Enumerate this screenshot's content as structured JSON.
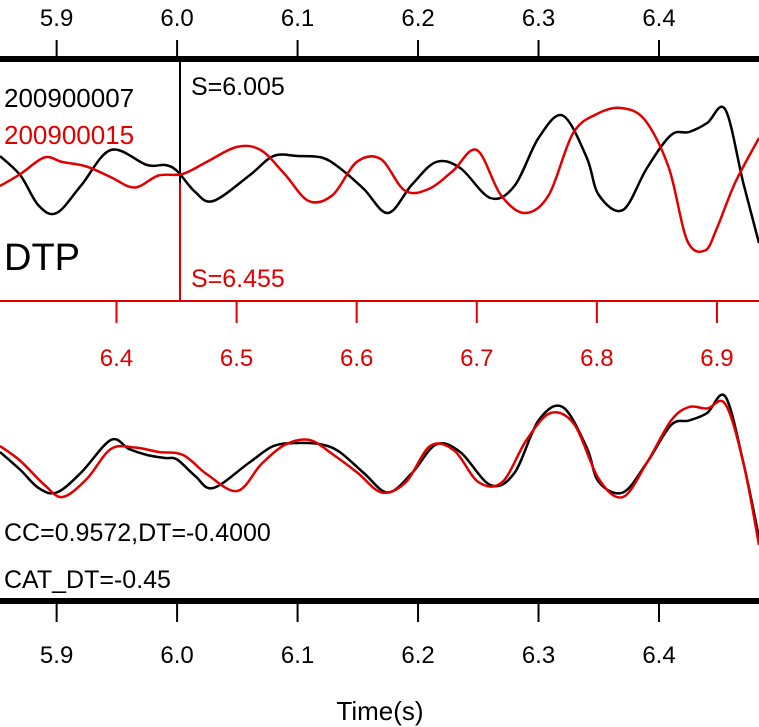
{
  "chart_data": [
    {
      "type": "line",
      "panel": "top",
      "title": "",
      "xlabel": "",
      "ylabel": "",
      "station": "DTP",
      "xlim": [
        5.853,
        6.483
      ],
      "xlim_red": [
        6.303,
        6.935
      ],
      "top_ticks": [
        "5.9",
        "6.0",
        "6.1",
        "6.2",
        "6.3",
        "6.4"
      ],
      "red_ticks": [
        "6.4",
        "6.5",
        "6.6",
        "6.7",
        "6.8",
        "6.9"
      ],
      "series": [
        {
          "name": "200900007",
          "color": "#000000",
          "pick_label": "S=6.005",
          "x": [
            5.853,
            5.87,
            5.885,
            5.9,
            5.92,
            5.945,
            5.975,
            5.99,
            6.0,
            6.015,
            6.03,
            6.06,
            6.08,
            6.1,
            6.12,
            6.135,
            6.155,
            6.175,
            6.195,
            6.215,
            6.235,
            6.26,
            6.28,
            6.3,
            6.32,
            6.34,
            6.35,
            6.37,
            6.39,
            6.41,
            6.425,
            6.44,
            6.455,
            6.47,
            6.483
          ],
          "y": [
            0.18,
            0.05,
            -0.15,
            -0.2,
            -0.02,
            0.22,
            0.12,
            0.12,
            0.08,
            -0.06,
            -0.12,
            0.05,
            0.18,
            0.18,
            0.17,
            0.1,
            -0.04,
            -0.2,
            -0.01,
            0.14,
            0.1,
            -0.1,
            -0.02,
            0.3,
            0.45,
            0.17,
            -0.08,
            -0.18,
            0.1,
            0.32,
            0.34,
            0.4,
            0.49,
            0.0,
            -0.4
          ]
        },
        {
          "name": "200900015",
          "color": "#e00000",
          "pick_label": "S=6.455",
          "x": [
            6.303,
            6.32,
            6.34,
            6.355,
            6.375,
            6.395,
            6.415,
            6.435,
            6.455,
            6.475,
            6.5,
            6.52,
            6.54,
            6.56,
            6.58,
            6.6,
            6.62,
            6.64,
            6.66,
            6.68,
            6.7,
            6.72,
            6.74,
            6.76,
            6.78,
            6.8,
            6.82,
            6.84,
            6.86,
            6.875,
            6.89,
            6.9,
            6.915,
            6.935
          ],
          "y": [
            -0.02,
            0.06,
            0.17,
            0.14,
            0.11,
            0.04,
            -0.03,
            0.05,
            0.06,
            0.14,
            0.24,
            0.22,
            0.06,
            -0.12,
            -0.08,
            0.14,
            0.16,
            -0.05,
            -0.04,
            0.08,
            0.22,
            -0.08,
            -0.2,
            -0.08,
            0.33,
            0.46,
            0.5,
            0.42,
            0.1,
            -0.38,
            -0.45,
            -0.3,
            0.0,
            0.3
          ]
        }
      ]
    },
    {
      "type": "line",
      "panel": "bottom",
      "title": "",
      "xlabel": "Time(s)",
      "ylabel": "",
      "xlim": [
        5.853,
        6.483
      ],
      "ticks": [
        "5.9",
        "6.0",
        "6.1",
        "6.2",
        "6.3",
        "6.4"
      ],
      "annotations": [
        "CC=0.9572,DT=-0.4000",
        "CAT_DT=-0.45"
      ],
      "series": [
        {
          "name": "200900007",
          "color": "#000000",
          "x": [
            5.853,
            5.87,
            5.885,
            5.9,
            5.92,
            5.945,
            5.96,
            5.975,
            5.99,
            6.0,
            6.015,
            6.03,
            6.06,
            6.08,
            6.1,
            6.12,
            6.135,
            6.155,
            6.175,
            6.195,
            6.215,
            6.235,
            6.26,
            6.28,
            6.3,
            6.32,
            6.34,
            6.35,
            6.37,
            6.39,
            6.41,
            6.425,
            6.44,
            6.455,
            6.47,
            6.483
          ],
          "y": [
            0.12,
            0.0,
            -0.12,
            -0.15,
            -0.02,
            0.2,
            0.14,
            0.1,
            0.08,
            0.07,
            -0.04,
            -0.12,
            0.05,
            0.16,
            0.18,
            0.17,
            0.12,
            -0.02,
            -0.15,
            -0.02,
            0.17,
            0.12,
            -0.1,
            -0.02,
            0.33,
            0.42,
            0.15,
            -0.08,
            -0.15,
            0.05,
            0.3,
            0.33,
            0.38,
            0.49,
            0.05,
            -0.45
          ]
        },
        {
          "name": "200900015",
          "color": "#e00000",
          "x": [
            5.853,
            5.87,
            5.89,
            5.905,
            5.925,
            5.945,
            5.965,
            5.985,
            6.005,
            6.025,
            6.05,
            6.07,
            6.09,
            6.11,
            6.13,
            6.15,
            6.17,
            6.19,
            6.21,
            6.23,
            6.25,
            6.27,
            6.29,
            6.31,
            6.33,
            6.35,
            6.37,
            6.39,
            6.41,
            6.425,
            6.44,
            6.455,
            6.47,
            6.483
          ],
          "y": [
            0.16,
            0.06,
            -0.1,
            -0.18,
            -0.06,
            0.14,
            0.15,
            0.12,
            0.1,
            -0.03,
            -0.14,
            0.04,
            0.17,
            0.2,
            0.1,
            -0.02,
            -0.15,
            -0.08,
            0.16,
            0.13,
            -0.08,
            -0.08,
            0.2,
            0.38,
            0.3,
            -0.06,
            -0.18,
            0.05,
            0.33,
            0.42,
            0.41,
            0.44,
            0.05,
            -0.5
          ]
        }
      ]
    }
  ]
}
